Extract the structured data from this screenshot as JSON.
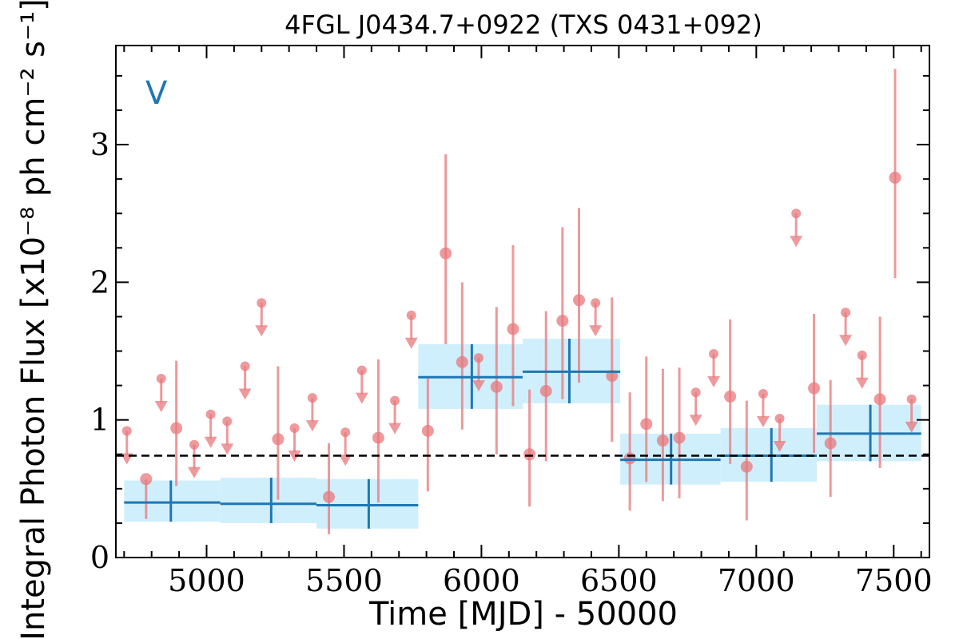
{
  "chart_data": {
    "type": "scatter",
    "title": "4FGL J0434.7+0922 (TXS 0431+092)",
    "xlabel": "Time [MJD] - 50000",
    "ylabel": "Integral Photon Flux [x10⁻⁸ ph cm⁻² s⁻¹]",
    "panel_label": "V",
    "xlim": [
      4670,
      7630
    ],
    "ylim": [
      0,
      3.72
    ],
    "x_ticks": [
      5000,
      5500,
      6000,
      6500,
      7000,
      7500
    ],
    "y_ticks": [
      0,
      1,
      2,
      3
    ],
    "x_tick_labels": [
      "5000",
      "5500",
      "6000",
      "6500",
      "7000",
      "7500"
    ],
    "y_tick_labels": [
      "0",
      "1",
      "2",
      "3"
    ],
    "mean_flux": 0.74,
    "colors": {
      "points": "#e8787c",
      "bins": "#1f77b4",
      "bin_band": "#cdeefc",
      "mean_line": "#000000",
      "panel_label": "#1f77b4"
    },
    "series": [
      {
        "type": "detections",
        "points": [
          {
            "x": 4780,
            "y": 0.57,
            "lo": 0.28,
            "hi": 0.57
          },
          {
            "x": 4890,
            "y": 0.94,
            "lo": 0.52,
            "hi": 1.43
          },
          {
            "x": 5260,
            "y": 0.86,
            "lo": 0.42,
            "hi": 1.39
          },
          {
            "x": 5445,
            "y": 0.44,
            "lo": 0.17,
            "hi": 0.83
          },
          {
            "x": 5625,
            "y": 0.87,
            "lo": 0.4,
            "hi": 1.44
          },
          {
            "x": 5805,
            "y": 0.92,
            "lo": 0.48,
            "hi": 1.3
          },
          {
            "x": 5870,
            "y": 2.21,
            "lo": 1.55,
            "hi": 2.93
          },
          {
            "x": 5930,
            "y": 1.42,
            "lo": 0.93,
            "hi": 2.0
          },
          {
            "x": 6055,
            "y": 1.24,
            "lo": 0.75,
            "hi": 1.82
          },
          {
            "x": 6115,
            "y": 1.66,
            "lo": 1.1,
            "hi": 2.27
          },
          {
            "x": 6175,
            "y": 0.75,
            "lo": 0.37,
            "hi": 1.22
          },
          {
            "x": 6235,
            "y": 1.21,
            "lo": 0.7,
            "hi": 1.79
          },
          {
            "x": 6295,
            "y": 1.72,
            "lo": 1.15,
            "hi": 2.4
          },
          {
            "x": 6355,
            "y": 1.87,
            "lo": 1.27,
            "hi": 2.54
          },
          {
            "x": 6475,
            "y": 1.32,
            "lo": 0.84,
            "hi": 1.89
          },
          {
            "x": 6540,
            "y": 0.72,
            "lo": 0.34,
            "hi": 1.2
          },
          {
            "x": 6600,
            "y": 0.97,
            "lo": 0.55,
            "hi": 1.46
          },
          {
            "x": 6660,
            "y": 0.85,
            "lo": 0.41,
            "hi": 1.37
          },
          {
            "x": 6720,
            "y": 0.87,
            "lo": 0.43,
            "hi": 1.38
          },
          {
            "x": 6905,
            "y": 1.17,
            "lo": 0.68,
            "hi": 1.73
          },
          {
            "x": 6965,
            "y": 0.66,
            "lo": 0.27,
            "hi": 1.14
          },
          {
            "x": 7210,
            "y": 1.23,
            "lo": 0.76,
            "hi": 1.77
          },
          {
            "x": 7270,
            "y": 0.83,
            "lo": 0.44,
            "hi": 1.29
          },
          {
            "x": 7450,
            "y": 1.15,
            "lo": 0.65,
            "hi": 1.75
          },
          {
            "x": 7505,
            "y": 2.76,
            "lo": 2.03,
            "hi": 3.55
          }
        ]
      },
      {
        "type": "upper_limits",
        "values": [
          {
            "x": 4710,
            "y": 0.92
          },
          {
            "x": 4835,
            "y": 1.3
          },
          {
            "x": 4955,
            "y": 0.82
          },
          {
            "x": 5015,
            "y": 1.04
          },
          {
            "x": 5075,
            "y": 0.99
          },
          {
            "x": 5140,
            "y": 1.39
          },
          {
            "x": 5200,
            "y": 1.85
          },
          {
            "x": 5320,
            "y": 0.94
          },
          {
            "x": 5385,
            "y": 1.16
          },
          {
            "x": 5505,
            "y": 0.91
          },
          {
            "x": 5565,
            "y": 1.36
          },
          {
            "x": 5685,
            "y": 1.14
          },
          {
            "x": 5745,
            "y": 1.76
          },
          {
            "x": 5990,
            "y": 1.45
          },
          {
            "x": 6415,
            "y": 1.85
          },
          {
            "x": 6780,
            "y": 1.2
          },
          {
            "x": 6845,
            "y": 1.48
          },
          {
            "x": 7025,
            "y": 1.19
          },
          {
            "x": 7085,
            "y": 1.01
          },
          {
            "x": 7145,
            "y": 2.5
          },
          {
            "x": 7325,
            "y": 1.78
          },
          {
            "x": 7385,
            "y": 1.47
          },
          {
            "x": 7565,
            "y": 1.15
          }
        ]
      },
      {
        "type": "binned",
        "bins": [
          {
            "x0": 4700,
            "x1": 5050,
            "xc": 4870,
            "y": 0.4,
            "lo": 0.26,
            "hi": 0.56
          },
          {
            "x0": 5050,
            "x1": 5400,
            "xc": 5235,
            "y": 0.39,
            "lo": 0.25,
            "hi": 0.58
          },
          {
            "x0": 5400,
            "x1": 5770,
            "xc": 5590,
            "y": 0.38,
            "lo": 0.21,
            "hi": 0.57
          },
          {
            "x0": 5770,
            "x1": 6150,
            "xc": 5965,
            "y": 1.31,
            "lo": 1.08,
            "hi": 1.55
          },
          {
            "x0": 6150,
            "x1": 6505,
            "xc": 6320,
            "y": 1.35,
            "lo": 1.12,
            "hi": 1.59
          },
          {
            "x0": 6505,
            "x1": 6870,
            "xc": 6690,
            "y": 0.71,
            "lo": 0.53,
            "hi": 0.9
          },
          {
            "x0": 6870,
            "x1": 7220,
            "xc": 7055,
            "y": 0.74,
            "lo": 0.55,
            "hi": 0.94
          },
          {
            "x0": 7220,
            "x1": 7600,
            "xc": 7415,
            "y": 0.9,
            "lo": 0.7,
            "hi": 1.11
          }
        ]
      }
    ]
  }
}
